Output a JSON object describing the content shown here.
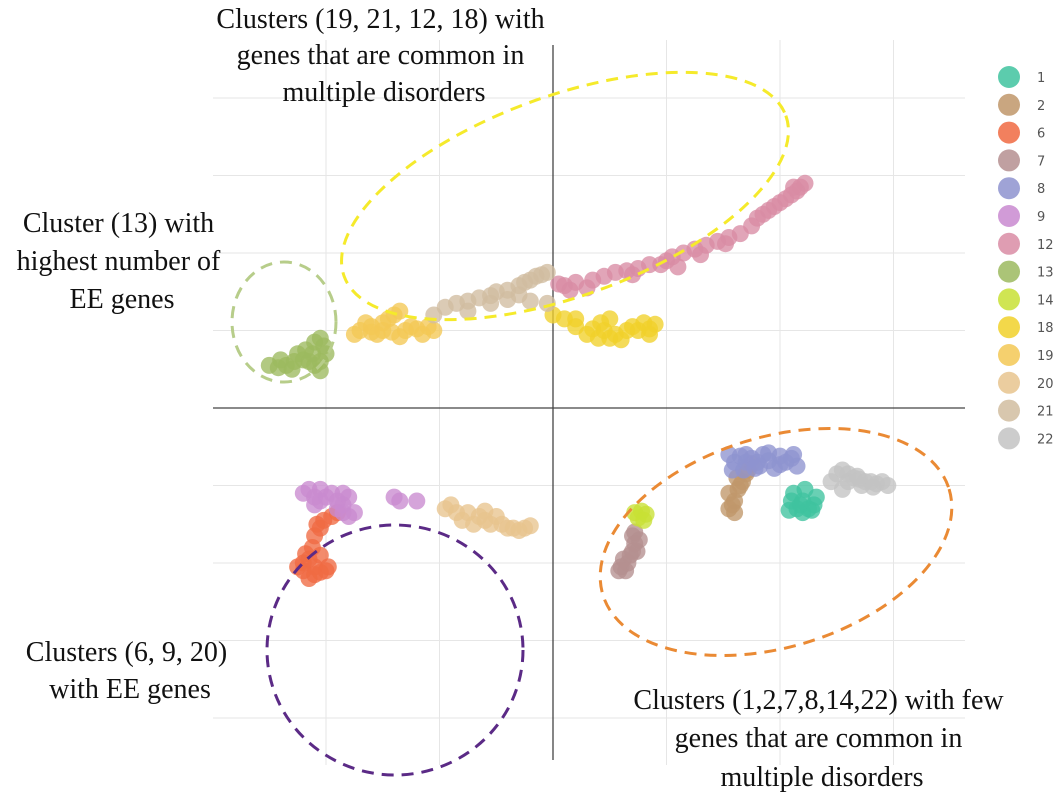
{
  "chart_data": {
    "type": "scatter",
    "title": "",
    "xlabel": "",
    "ylabel": "",
    "xlim": [
      -3.0,
      3.6
    ],
    "ylim": [
      -4.0,
      4.2
    ],
    "grid": true,
    "legend_position": "right",
    "series": [
      {
        "name": "1",
        "color": "#3fc39f",
        "points": [
          [
            2.1,
            -1.2
          ],
          [
            2.15,
            -1.3
          ],
          [
            2.2,
            -1.35
          ],
          [
            2.25,
            -1.3
          ],
          [
            2.3,
            -1.25
          ],
          [
            2.18,
            -1.25
          ],
          [
            2.28,
            -1.32
          ],
          [
            2.12,
            -1.1
          ],
          [
            2.22,
            -1.05
          ],
          [
            2.32,
            -1.15
          ],
          [
            2.08,
            -1.32
          ],
          [
            2.2,
            -1.2
          ]
        ]
      },
      {
        "name": "2",
        "color": "#c0976a",
        "points": [
          [
            1.55,
            -1.1
          ],
          [
            1.6,
            -1.2
          ],
          [
            1.63,
            -1.05
          ],
          [
            1.67,
            -0.95
          ],
          [
            1.7,
            -0.85
          ],
          [
            1.6,
            -1.35
          ],
          [
            1.58,
            -1.25
          ],
          [
            1.72,
            -0.8
          ],
          [
            1.75,
            -0.72
          ],
          [
            1.65,
            -1.0
          ],
          [
            1.55,
            -1.3
          ],
          [
            1.62,
            -0.9
          ]
        ]
      },
      {
        "name": "6",
        "color": "#f06a42",
        "points": [
          [
            -2.2,
            -2.0
          ],
          [
            -2.2,
            -2.1
          ],
          [
            -2.1,
            -2.05
          ],
          [
            -2.0,
            -2.1
          ],
          [
            -2.1,
            -2.15
          ],
          [
            -2.15,
            -1.95
          ],
          [
            -2.05,
            -1.9
          ],
          [
            -2.12,
            -1.8
          ],
          [
            -2.05,
            -2.12
          ],
          [
            -1.98,
            -2.05
          ],
          [
            -2.25,
            -2.05
          ],
          [
            -2.15,
            -2.2
          ],
          [
            -2.08,
            -1.5
          ],
          [
            -2.02,
            -1.45
          ],
          [
            -2.05,
            -1.55
          ],
          [
            -1.95,
            -1.4
          ],
          [
            -1.9,
            -1.35
          ],
          [
            -2.1,
            -1.65
          ],
          [
            -2.18,
            -1.88
          ]
        ]
      },
      {
        "name": "7",
        "color": "#b58f90",
        "points": [
          [
            0.7,
            -1.65
          ],
          [
            0.72,
            -1.75
          ],
          [
            0.74,
            -1.85
          ],
          [
            0.68,
            -1.9
          ],
          [
            0.66,
            -2.0
          ],
          [
            0.6,
            -2.05
          ],
          [
            0.62,
            -1.95
          ],
          [
            0.7,
            -1.85
          ],
          [
            0.76,
            -1.7
          ],
          [
            0.64,
            -2.1
          ],
          [
            0.72,
            -1.6
          ],
          [
            0.58,
            -2.1
          ]
        ]
      },
      {
        "name": "8",
        "color": "#8e93cf",
        "points": [
          [
            1.55,
            -0.6
          ],
          [
            1.7,
            -0.6
          ],
          [
            1.85,
            -0.6
          ],
          [
            2.0,
            -0.62
          ],
          [
            2.1,
            -0.65
          ],
          [
            1.7,
            -0.7
          ],
          [
            1.8,
            -0.7
          ],
          [
            1.9,
            -0.68
          ],
          [
            2.05,
            -0.7
          ],
          [
            1.95,
            -0.78
          ],
          [
            1.65,
            -0.62
          ],
          [
            1.75,
            -0.65
          ],
          [
            2.15,
            -0.75
          ],
          [
            1.6,
            -0.7
          ],
          [
            1.9,
            -0.58
          ],
          [
            2.0,
            -0.73
          ],
          [
            1.82,
            -0.75
          ],
          [
            2.12,
            -0.6
          ],
          [
            1.58,
            -0.8
          ],
          [
            1.68,
            -0.8
          ],
          [
            1.78,
            -0.78
          ]
        ]
      },
      {
        "name": "9",
        "color": "#c98ad0",
        "points": [
          [
            -2.15,
            -1.05
          ],
          [
            -2.05,
            -1.05
          ],
          [
            -1.95,
            -1.1
          ],
          [
            -1.85,
            -1.1
          ],
          [
            -1.8,
            -1.15
          ],
          [
            -2.0,
            -1.15
          ],
          [
            -2.1,
            -1.15
          ],
          [
            -1.9,
            -1.2
          ],
          [
            -1.85,
            -1.25
          ],
          [
            -1.9,
            -1.3
          ],
          [
            -1.85,
            -1.35
          ],
          [
            -1.8,
            -1.4
          ],
          [
            -2.1,
            -1.25
          ],
          [
            -2.2,
            -1.1
          ],
          [
            -1.75,
            -1.35
          ],
          [
            -1.4,
            -1.15
          ],
          [
            -1.35,
            -1.2
          ],
          [
            -1.2,
            -1.2
          ],
          [
            -2.05,
            -1.2
          ]
        ]
      },
      {
        "name": "12",
        "color": "#d98ca4",
        "points": [
          [
            0.05,
            1.6
          ],
          [
            0.1,
            1.58
          ],
          [
            0.2,
            1.62
          ],
          [
            0.35,
            1.65
          ],
          [
            0.45,
            1.7
          ],
          [
            0.55,
            1.75
          ],
          [
            0.65,
            1.77
          ],
          [
            0.75,
            1.8
          ],
          [
            0.85,
            1.85
          ],
          [
            0.95,
            1.85
          ],
          [
            1.05,
            1.95
          ],
          [
            1.15,
            2.0
          ],
          [
            1.25,
            2.05
          ],
          [
            1.35,
            2.1
          ],
          [
            1.45,
            2.15
          ],
          [
            1.55,
            2.2
          ],
          [
            1.65,
            2.25
          ],
          [
            1.75,
            2.35
          ],
          [
            1.8,
            2.45
          ],
          [
            1.85,
            2.5
          ],
          [
            1.9,
            2.55
          ],
          [
            1.95,
            2.6
          ],
          [
            2.0,
            2.65
          ],
          [
            2.05,
            2.7
          ],
          [
            2.1,
            2.75
          ],
          [
            2.15,
            2.8
          ],
          [
            2.18,
            2.85
          ],
          [
            2.22,
            2.9
          ],
          [
            0.15,
            1.52
          ],
          [
            0.3,
            1.55
          ],
          [
            0.7,
            1.72
          ],
          [
            1.0,
            1.9
          ],
          [
            1.1,
            1.82
          ],
          [
            1.3,
            1.98
          ],
          [
            1.52,
            2.12
          ],
          [
            2.12,
            2.85
          ]
        ]
      },
      {
        "name": "13",
        "color": "#9cba5f",
        "points": [
          [
            -2.5,
            0.55
          ],
          [
            -2.42,
            0.52
          ],
          [
            -2.35,
            0.55
          ],
          [
            -2.28,
            0.6
          ],
          [
            -2.2,
            0.62
          ],
          [
            -2.15,
            0.6
          ],
          [
            -2.1,
            0.55
          ],
          [
            -2.05,
            0.6
          ],
          [
            -2.0,
            0.7
          ],
          [
            -2.02,
            0.8
          ],
          [
            -2.05,
            0.9
          ],
          [
            -2.1,
            0.85
          ],
          [
            -2.12,
            0.7
          ],
          [
            -2.18,
            0.75
          ],
          [
            -2.3,
            0.5
          ],
          [
            -2.4,
            0.62
          ],
          [
            -2.25,
            0.7
          ],
          [
            -2.05,
            0.48
          ]
        ]
      },
      {
        "name": "14",
        "color": "#c8e035",
        "points": [
          [
            0.72,
            -1.35
          ],
          [
            0.78,
            -1.33
          ],
          [
            0.82,
            -1.37
          ],
          [
            0.75,
            -1.42
          ],
          [
            0.8,
            -1.45
          ]
        ]
      },
      {
        "name": "18",
        "color": "#f1d12a",
        "points": [
          [
            0.0,
            1.2
          ],
          [
            0.1,
            1.15
          ],
          [
            0.2,
            1.05
          ],
          [
            0.3,
            0.95
          ],
          [
            0.4,
            0.9
          ],
          [
            0.5,
            0.9
          ],
          [
            0.55,
            0.95
          ],
          [
            0.65,
            1.0
          ],
          [
            0.75,
            1.0
          ],
          [
            0.85,
            1.02
          ],
          [
            0.9,
            1.08
          ],
          [
            0.8,
            1.1
          ],
          [
            0.6,
            0.88
          ],
          [
            0.45,
            1.0
          ],
          [
            0.35,
            1.02
          ],
          [
            0.2,
            1.15
          ],
          [
            0.7,
            1.05
          ],
          [
            0.85,
            0.95
          ],
          [
            0.42,
            1.1
          ],
          [
            0.5,
            1.15
          ]
        ]
      },
      {
        "name": "19",
        "color": "#f3c855",
        "points": [
          [
            -1.75,
            0.95
          ],
          [
            -1.7,
            1.0
          ],
          [
            -1.6,
            1.05
          ],
          [
            -1.5,
            1.1
          ],
          [
            -1.45,
            1.15
          ],
          [
            -1.4,
            1.2
          ],
          [
            -1.35,
            1.25
          ],
          [
            -1.55,
            0.95
          ],
          [
            -1.42,
            0.98
          ],
          [
            -1.3,
            1.0
          ],
          [
            -1.2,
            1.02
          ],
          [
            -1.1,
            1.05
          ],
          [
            -1.65,
            1.1
          ],
          [
            -1.5,
            1.0
          ],
          [
            -1.35,
            0.92
          ],
          [
            -1.25,
            1.05
          ],
          [
            -1.15,
            0.95
          ],
          [
            -1.05,
            1.0
          ],
          [
            -1.6,
            0.98
          ]
        ]
      },
      {
        "name": "20",
        "color": "#e8c48e",
        "points": [
          [
            -0.95,
            -1.3
          ],
          [
            -0.85,
            -1.35
          ],
          [
            -0.75,
            -1.35
          ],
          [
            -0.65,
            -1.4
          ],
          [
            -0.6,
            -1.45
          ],
          [
            -0.55,
            -1.5
          ],
          [
            -0.45,
            -1.5
          ],
          [
            -0.4,
            -1.55
          ],
          [
            -0.35,
            -1.55
          ],
          [
            -0.3,
            -1.58
          ],
          [
            -0.25,
            -1.55
          ],
          [
            -0.2,
            -1.52
          ],
          [
            -0.7,
            -1.5
          ],
          [
            -0.8,
            -1.45
          ],
          [
            -0.5,
            -1.4
          ],
          [
            -0.9,
            -1.25
          ],
          [
            -0.6,
            -1.33
          ]
        ]
      },
      {
        "name": "21",
        "color": "#d1bda0",
        "points": [
          [
            -0.95,
            1.3
          ],
          [
            -0.85,
            1.35
          ],
          [
            -0.75,
            1.38
          ],
          [
            -0.65,
            1.42
          ],
          [
            -0.55,
            1.45
          ],
          [
            -0.5,
            1.5
          ],
          [
            -0.4,
            1.52
          ],
          [
            -0.3,
            1.58
          ],
          [
            -0.25,
            1.62
          ],
          [
            -0.2,
            1.65
          ],
          [
            -0.15,
            1.7
          ],
          [
            -0.1,
            1.72
          ],
          [
            -0.05,
            1.75
          ],
          [
            -0.4,
            1.4
          ],
          [
            -0.2,
            1.38
          ],
          [
            -0.05,
            1.35
          ],
          [
            -0.75,
            1.25
          ],
          [
            -0.55,
            1.35
          ],
          [
            -1.05,
            1.2
          ],
          [
            -0.3,
            1.46
          ]
        ]
      },
      {
        "name": "22",
        "color": "#c3c3c3",
        "points": [
          [
            2.5,
            -0.85
          ],
          [
            2.55,
            -0.8
          ],
          [
            2.6,
            -0.85
          ],
          [
            2.65,
            -0.9
          ],
          [
            2.7,
            -0.92
          ],
          [
            2.75,
            -0.95
          ],
          [
            2.8,
            -0.95
          ],
          [
            2.85,
            -0.98
          ],
          [
            2.9,
            -0.95
          ],
          [
            2.95,
            -1.0
          ],
          [
            2.6,
            -0.95
          ],
          [
            2.72,
            -1.0
          ],
          [
            2.82,
            -1.02
          ],
          [
            2.45,
            -0.95
          ],
          [
            2.55,
            -1.05
          ],
          [
            2.68,
            -0.88
          ]
        ]
      }
    ],
    "annotations": [
      {
        "lines": [
          "Clusters (19, 21, 12, 18) with",
          "genes that are common in",
          "multiple disorders"
        ]
      },
      {
        "lines": [
          "Cluster (13) with",
          "highest number of",
          "EE genes"
        ]
      },
      {
        "lines": [
          "Clusters (6, 9, 20)",
          "with EE genes"
        ]
      },
      {
        "lines": [
          "Clusters (1,2,7,8,14,22) with few",
          "genes that are common in",
          "multiple disorders"
        ]
      }
    ],
    "highlight_colors": {
      "upper_group": "#f5ea2b",
      "cluster_13": "#b7cd8a",
      "lower_left_group": "#5b2a86",
      "lower_right_group": "#ea8a34"
    }
  }
}
